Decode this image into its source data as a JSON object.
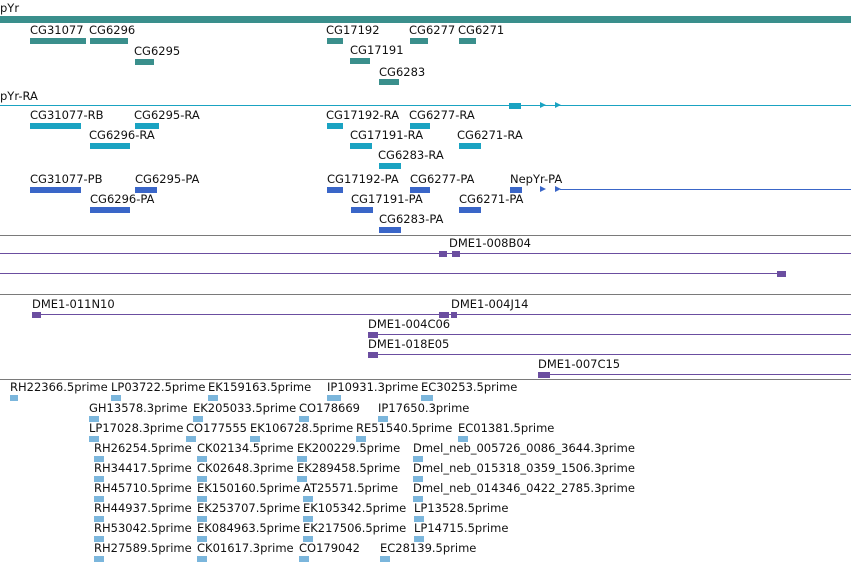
{
  "colors": {
    "gene": "#3a8f8c",
    "mrna": "#1aa3c2",
    "protein": "#3a66c8",
    "clone": "#6b4ea0",
    "est": "#7bb6dc",
    "separator": "#7a7a7a"
  },
  "gene_track": {
    "title": "pYr",
    "genes": [
      "CG31077",
      "CG6296",
      "CG6295",
      "CG17192",
      "CG17191",
      "CG6283",
      "CG6277",
      "CG6271"
    ]
  },
  "mrna_track": {
    "title": "pYr-RA",
    "transcripts": [
      "CG31077-RB",
      "CG6296-RA",
      "CG6295-RA",
      "CG17192-RA",
      "CG17191-RA",
      "CG6283-RA",
      "CG6277-RA",
      "CG6271-RA"
    ]
  },
  "protein_track": {
    "proteins": [
      "CG31077-PB",
      "CG6296-PA",
      "CG6295-PA",
      "CG17192-PA",
      "CG17191-PA",
      "CG6283-PA",
      "CG6277-PA",
      "CG6271-PA",
      "NepYr-PA"
    ]
  },
  "clone_track_1": {
    "clones": [
      "DME1-008B04"
    ]
  },
  "clone_track_2": {
    "clones": [
      "DME1-011N10",
      "DME1-004J14",
      "DME1-004C06",
      "DME1-018E05",
      "DME1-007C15"
    ]
  },
  "est_track": {
    "ests": [
      "RH22366.5prime",
      "LP03722.5prime",
      "EK159163.5prime",
      "IP10931.3prime",
      "EC30253.5prime",
      "GH13578.3prime",
      "EK205033.5prime",
      "CO178669",
      "IP17650.3prime",
      "LP17028.3prime",
      "CO177555",
      "EK106728.5prime",
      "RE51540.5prime",
      "EC01381.5prime",
      "RH26254.5prime",
      "CK02134.5prime",
      "EK200229.5prime",
      "Dmel_neb_005726_0086_3644.3prime",
      "RH34417.5prime",
      "CK02648.3prime",
      "EK289458.5prime",
      "Dmel_neb_015318_0359_1506.3prime",
      "RH45710.5prime",
      "EK150160.5prime",
      "AT25571.5prime",
      "Dmel_neb_014346_0422_2785.3prime",
      "RH44937.5prime",
      "EK253707.5prime",
      "EK105342.5prime",
      "LP13528.5prime",
      "RH53042.5prime",
      "EK084963.5prime",
      "EK217506.5prime",
      "LP14715.5prime",
      "RH27589.5prime",
      "CK01617.3prime",
      "CO179042",
      "EC28139.5prime"
    ]
  }
}
